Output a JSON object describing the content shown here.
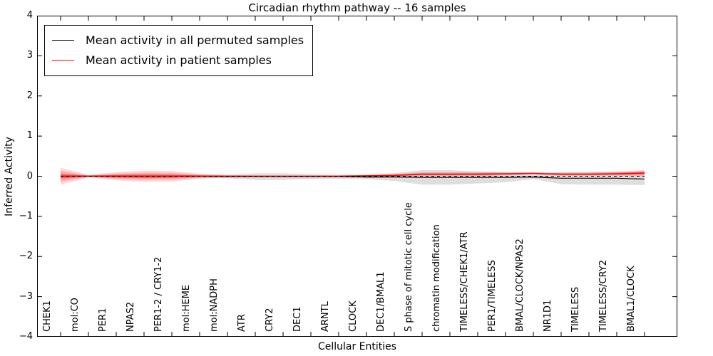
{
  "chart_data": {
    "type": "line",
    "title": "Circadian rhythm pathway -- 16 samples",
    "xlabel": "Cellular Entities",
    "ylabel": "Inferred Activity",
    "ylim": [
      -4,
      4
    ],
    "grid": false,
    "legend_position": "upper left",
    "colors": {
      "permuted": "#000000",
      "patient": "#ff0000",
      "permuted_band": "rgba(0,0,0,0.13)",
      "patient_band": "rgba(255,0,0,0.16)"
    },
    "yticks": [
      {
        "v": 4,
        "label": "4"
      },
      {
        "v": 3,
        "label": "3"
      },
      {
        "v": 2,
        "label": "2"
      },
      {
        "v": 1,
        "label": "1"
      },
      {
        "v": 0,
        "label": "0"
      },
      {
        "v": -1,
        "label": "−1"
      },
      {
        "v": -2,
        "label": "−2"
      },
      {
        "v": -3,
        "label": "−3"
      },
      {
        "v": -4,
        "label": "−4"
      }
    ],
    "categories": [
      "CHEK1",
      "mol:CO",
      "PER1",
      "NPAS2",
      "PER1-2 / CRY1-2",
      "mol:HEME",
      "mol:NADPH",
      "ATR",
      "CRY2",
      "DEC1",
      "ARNTL",
      "CLOCK",
      "DEC1/BMAL1",
      "S phase of mitotic cell cycle",
      "chromatin modification",
      "TIMELESS/CHEK1/ATR",
      "PER1/TIMELESS",
      "BMAL/CLOCK/NPAS2",
      "NR1D1",
      "TIMELESS",
      "TIMELESS/CRY2",
      "BMAL1/CLOCK"
    ],
    "zero_line": {
      "value": 0,
      "style": "dashed",
      "color": "#000000"
    },
    "series": [
      {
        "name": "Mean activity in all permuted samples",
        "color": "#000000",
        "values": [
          0,
          0,
          0,
          0,
          0,
          0,
          -0.01,
          -0.01,
          -0.01,
          -0.01,
          -0.01,
          -0.02,
          -0.02,
          -0.03,
          -0.03,
          -0.03,
          -0.03,
          -0.02,
          -0.05,
          -0.05,
          -0.05,
          -0.07
        ],
        "band": [
          0.05,
          0.02,
          0.04,
          0.05,
          0.04,
          0.03,
          0.04,
          0.08,
          0.08,
          0.06,
          0.05,
          0.05,
          0.1,
          0.18,
          0.18,
          0.15,
          0.12,
          0.05,
          0.15,
          0.16,
          0.16,
          0.15
        ]
      },
      {
        "name": "Mean activity in patient samples",
        "color": "#ff0000",
        "values": [
          0,
          0,
          0,
          0,
          0,
          0,
          0,
          0,
          0,
          0,
          0,
          0.01,
          0.02,
          0.05,
          0.05,
          0.05,
          0.06,
          0.07,
          0.05,
          0.05,
          0.06,
          0.08
        ],
        "band": [
          0.21,
          0.03,
          0.1,
          0.14,
          0.13,
          0.06,
          0.03,
          0.02,
          0.02,
          0.02,
          0.02,
          0.02,
          0.03,
          0.05,
          0.05,
          0.05,
          0.04,
          0.03,
          0.04,
          0.04,
          0.05,
          0.08
        ]
      }
    ]
  }
}
